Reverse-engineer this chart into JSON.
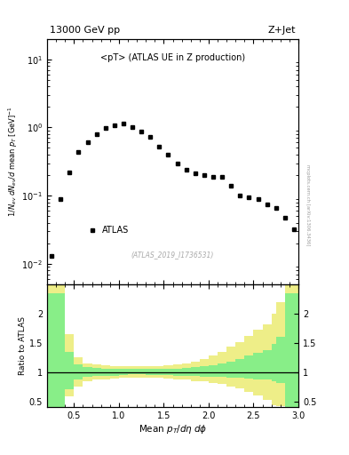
{
  "title_left": "13000 GeV pp",
  "title_right": "Z+Jet",
  "main_label": "<pT> (ATLAS UE in Z production)",
  "atlas_label": "ATLAS",
  "ref_label": "(ATLAS_2019_I1736531)",
  "watermark": "mcplots.cern.ch [arXiv:1306.3436]",
  "data_x": [
    0.25,
    0.35,
    0.45,
    0.55,
    0.65,
    0.75,
    0.85,
    0.95,
    1.05,
    1.15,
    1.25,
    1.35,
    1.45,
    1.55,
    1.65,
    1.75,
    1.85,
    1.95,
    2.05,
    2.15,
    2.25,
    2.35,
    2.45,
    2.55,
    2.65,
    2.75,
    2.85,
    2.95
  ],
  "data_y": [
    0.013,
    0.088,
    0.22,
    0.44,
    0.6,
    0.8,
    0.97,
    1.08,
    1.13,
    1.0,
    0.88,
    0.73,
    0.52,
    0.4,
    0.3,
    0.24,
    0.21,
    0.2,
    0.19,
    0.19,
    0.14,
    0.1,
    0.095,
    0.088,
    0.075,
    0.065,
    0.048,
    0.032
  ],
  "ratio_x_edges": [
    0.2,
    0.4,
    0.5,
    0.6,
    0.7,
    0.8,
    0.9,
    1.0,
    1.1,
    1.2,
    1.3,
    1.4,
    1.5,
    1.6,
    1.7,
    1.8,
    1.9,
    2.0,
    2.1,
    2.2,
    2.3,
    2.4,
    2.5,
    2.6,
    2.7,
    2.75,
    2.85,
    3.0
  ],
  "ratio_green_lo": [
    0.4,
    0.7,
    0.88,
    0.92,
    0.93,
    0.94,
    0.94,
    0.95,
    0.96,
    0.96,
    0.95,
    0.95,
    0.95,
    0.94,
    0.93,
    0.93,
    0.92,
    0.92,
    0.92,
    0.91,
    0.9,
    0.89,
    0.88,
    0.87,
    0.85,
    0.82,
    0.4
  ],
  "ratio_green_hi": [
    2.35,
    1.35,
    1.13,
    1.08,
    1.07,
    1.06,
    1.06,
    1.06,
    1.05,
    1.05,
    1.05,
    1.06,
    1.06,
    1.06,
    1.07,
    1.08,
    1.1,
    1.12,
    1.15,
    1.18,
    1.22,
    1.28,
    1.33,
    1.38,
    1.48,
    1.6,
    2.35
  ],
  "ratio_yellow_lo": [
    0.37,
    0.58,
    0.76,
    0.84,
    0.87,
    0.88,
    0.89,
    0.9,
    0.9,
    0.91,
    0.9,
    0.9,
    0.89,
    0.88,
    0.87,
    0.85,
    0.84,
    0.82,
    0.8,
    0.76,
    0.72,
    0.66,
    0.6,
    0.52,
    0.44,
    0.42,
    0.37
  ],
  "ratio_yellow_hi": [
    2.5,
    1.65,
    1.25,
    1.15,
    1.13,
    1.12,
    1.11,
    1.11,
    1.1,
    1.1,
    1.1,
    1.11,
    1.12,
    1.13,
    1.15,
    1.18,
    1.22,
    1.28,
    1.35,
    1.43,
    1.52,
    1.62,
    1.72,
    1.82,
    2.0,
    2.2,
    2.5
  ],
  "ylim_main": [
    0.005,
    20
  ],
  "ylim_ratio": [
    0.4,
    2.5
  ],
  "xlim": [
    0.2,
    3.0
  ],
  "green_color": "#88ee88",
  "yellow_color": "#eeee88",
  "ratio_yticks": [
    0.5,
    1.0,
    1.5,
    2.0
  ],
  "ratio_yticklabels": [
    "0.5",
    "1",
    "1.5",
    "2"
  ]
}
